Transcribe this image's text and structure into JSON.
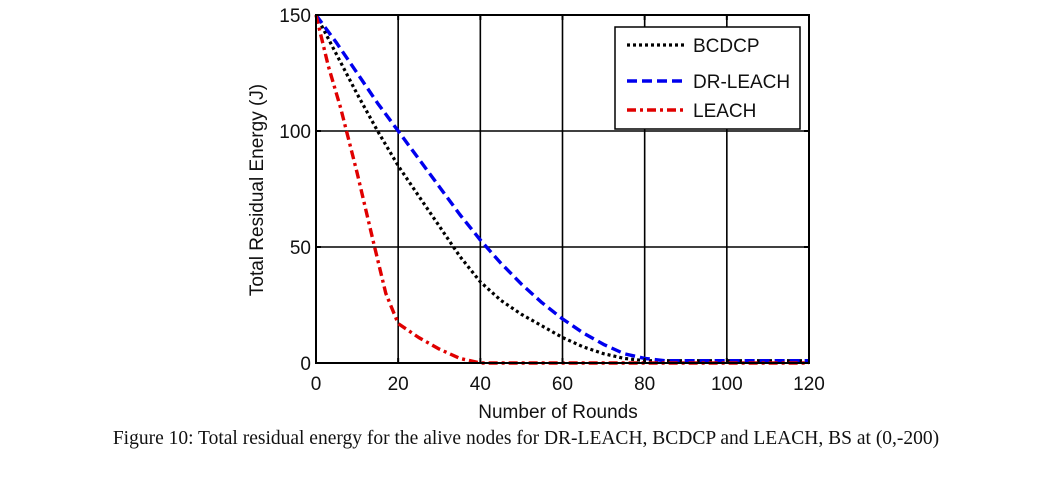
{
  "chart_data": {
    "type": "line",
    "title": "",
    "xlabel": "Number of Rounds",
    "ylabel": "Total Residual Energy (J)",
    "xlim": [
      0,
      120
    ],
    "ylim": [
      0,
      150
    ],
    "xticks": [
      0,
      20,
      40,
      60,
      80,
      100,
      120
    ],
    "yticks": [
      0,
      50,
      100,
      150
    ],
    "xtick_labels": [
      "0",
      "20",
      "40",
      "60",
      "80",
      "100",
      "120"
    ],
    "ytick_labels": [
      "0",
      "50",
      "100",
      "150"
    ],
    "grid": true,
    "legend_position": "top-right",
    "series": [
      {
        "name": "BCDCP",
        "color": "#000000",
        "style": "dotted",
        "x": [
          0,
          5,
          10,
          15,
          20,
          25,
          30,
          35,
          40,
          45,
          50,
          55,
          60,
          65,
          70,
          75,
          80,
          85,
          90,
          100,
          110,
          120
        ],
        "y": [
          150,
          133,
          116,
          100,
          85,
          72,
          59,
          46,
          35,
          27,
          21,
          16,
          11,
          7,
          4,
          2,
          1,
          1,
          1,
          1,
          1,
          1
        ]
      },
      {
        "name": "DR-LEACH",
        "color": "#0000ee",
        "style": "dashed",
        "x": [
          0,
          5,
          10,
          15,
          20,
          25,
          30,
          35,
          40,
          45,
          50,
          55,
          60,
          65,
          70,
          75,
          80,
          85,
          90,
          100,
          110,
          120
        ],
        "y": [
          150,
          138,
          125,
          112,
          100,
          88,
          76,
          64,
          53,
          43,
          34,
          26,
          19,
          13,
          8,
          4,
          2,
          1,
          1,
          1,
          1,
          1
        ]
      },
      {
        "name": "LEACH",
        "color": "#e00000",
        "style": "dash-dot",
        "x": [
          0,
          3,
          6,
          10,
          14,
          17,
          20,
          25,
          30,
          35,
          40,
          50,
          60,
          70,
          80,
          90,
          100,
          110,
          120
        ],
        "y": [
          150,
          128,
          110,
          82,
          52,
          30,
          17,
          11,
          6,
          2,
          0,
          0,
          0,
          0,
          0,
          0,
          0,
          0,
          0
        ]
      }
    ]
  },
  "caption": "Figure 10: Total residual energy for the alive nodes for DR-LEACH, BCDCP and LEACH, BS at (0,-200)"
}
